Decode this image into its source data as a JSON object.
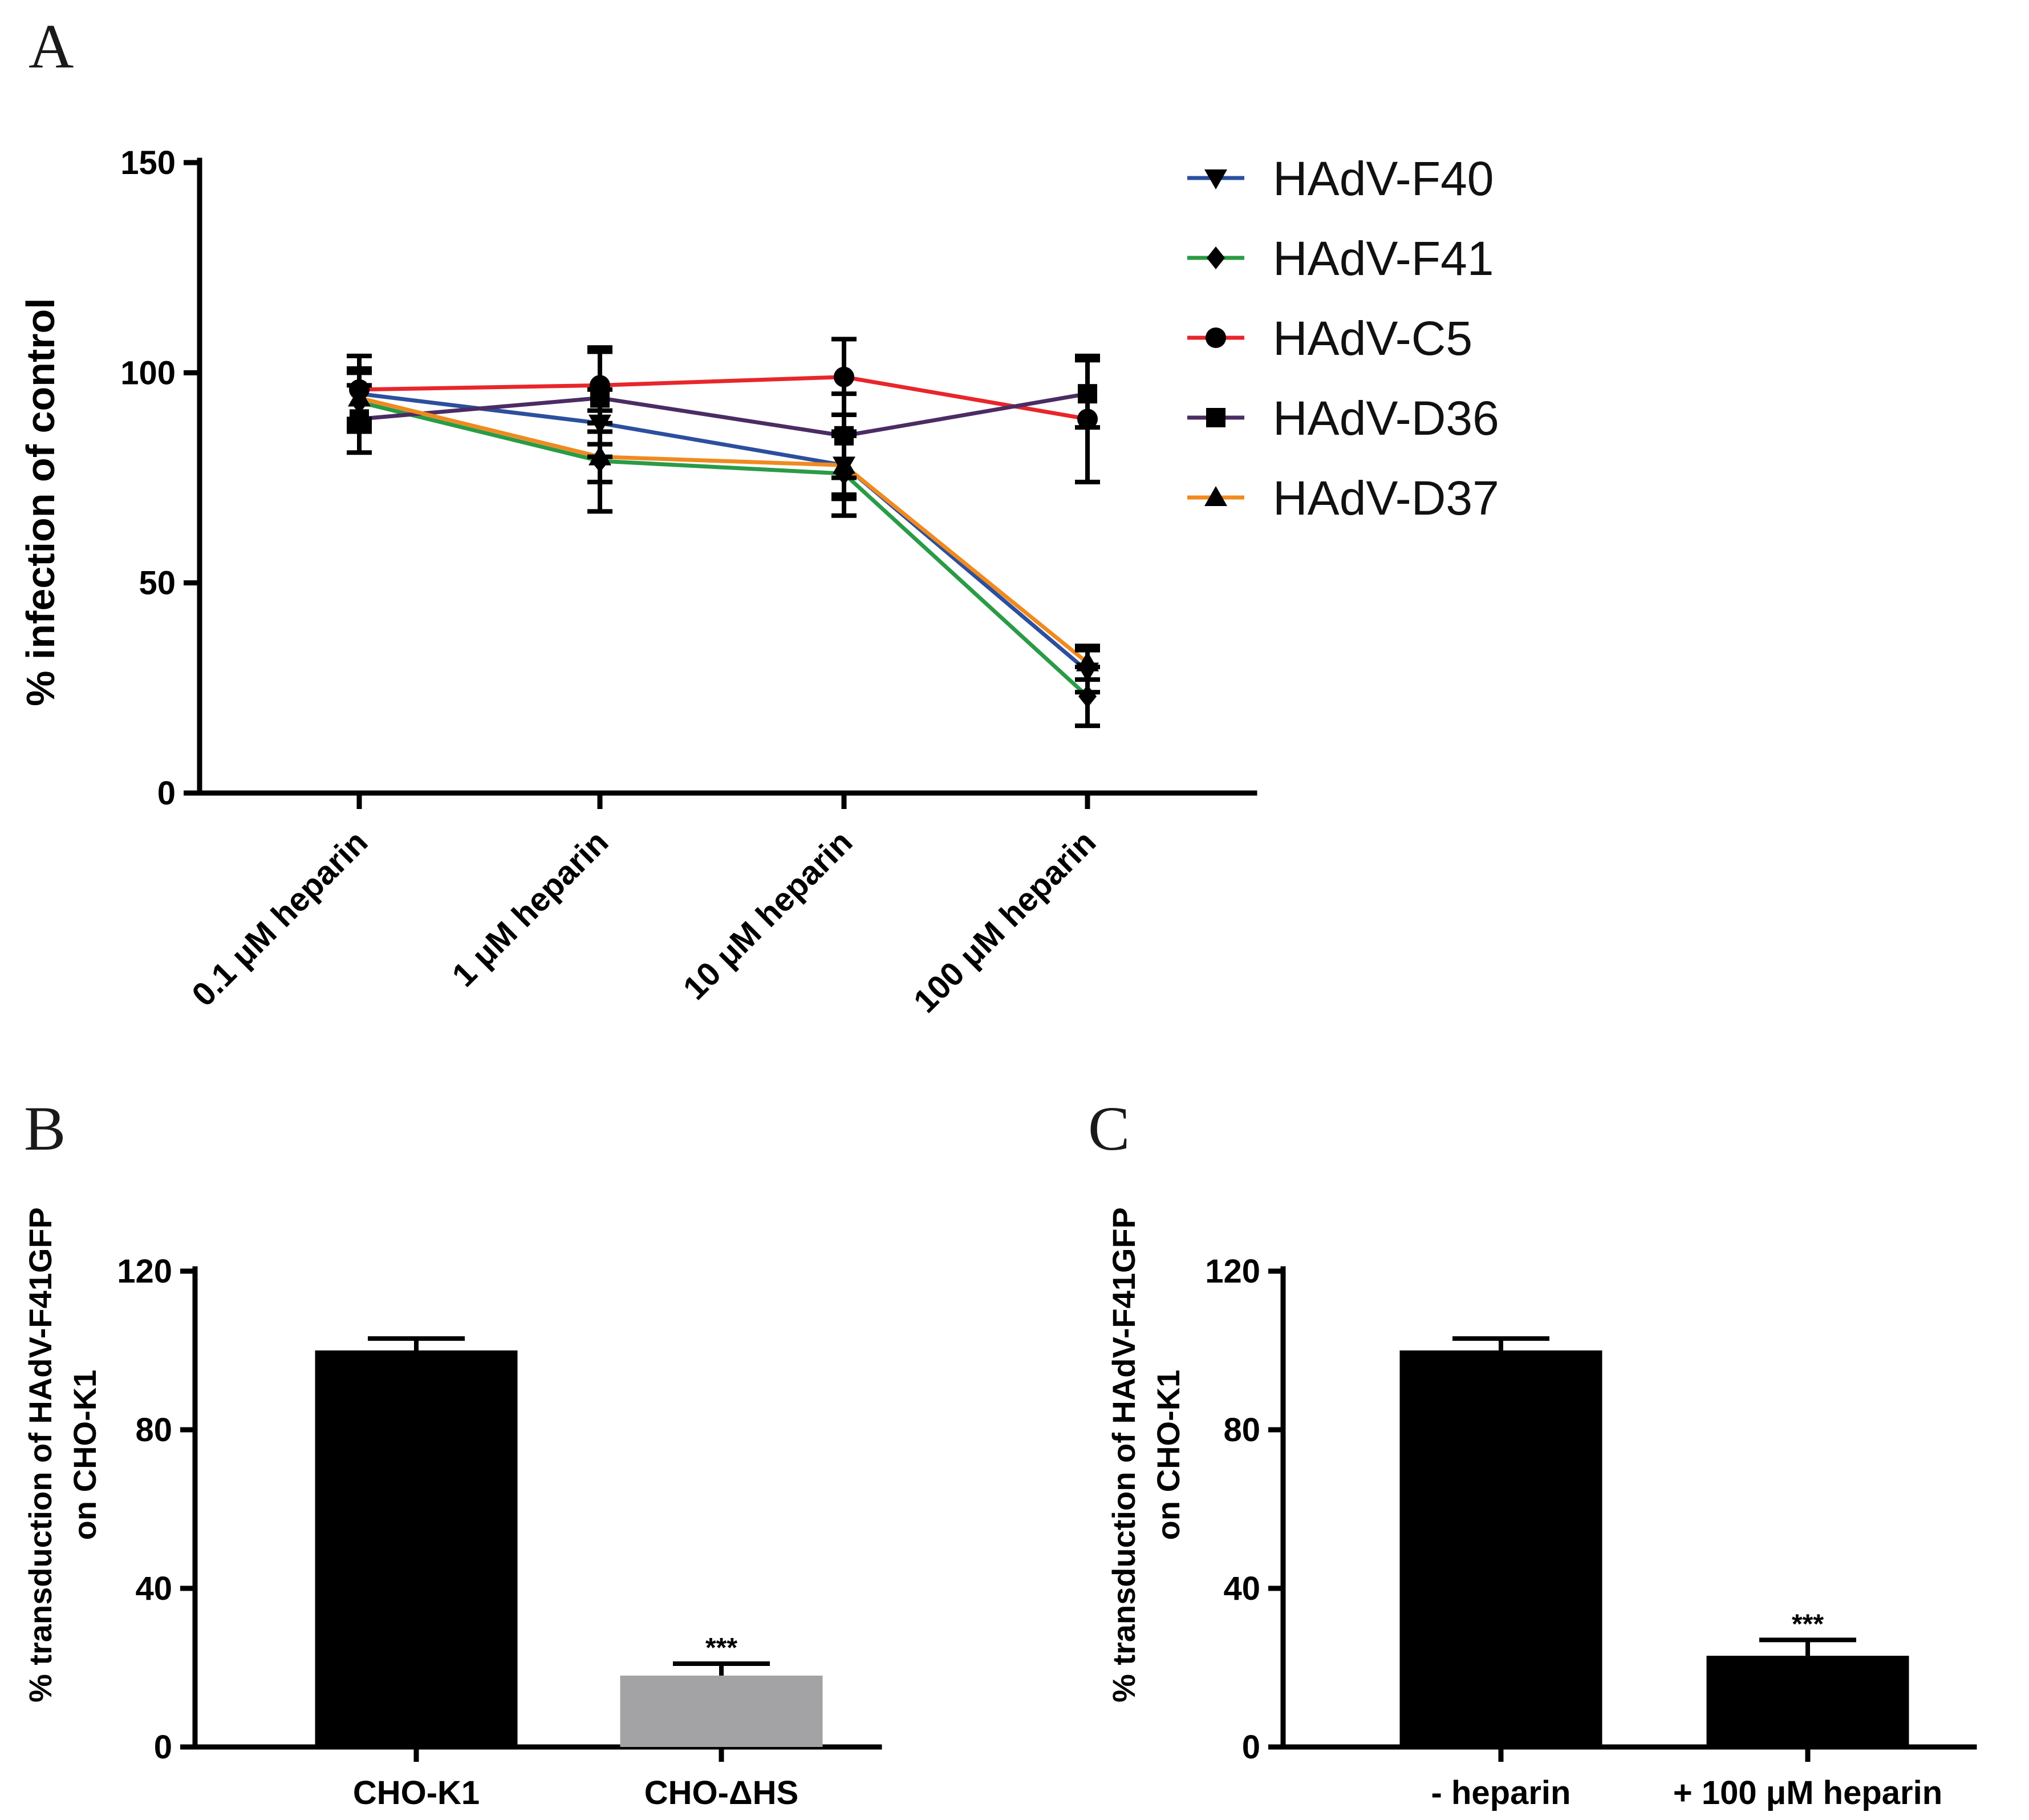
{
  "panels": {
    "a_label": "A",
    "b_label": "B",
    "c_label": "C"
  },
  "chart_data": [
    {
      "id": "A",
      "type": "line",
      "title": "",
      "ylabel": "% infection of control",
      "xlabel": "",
      "ylim": [
        0,
        150
      ],
      "yticks": [
        0,
        50,
        100,
        150
      ],
      "categories": [
        "0.1 μM heparin",
        "1 μM heparin",
        "10 μM heparin",
        "100 μM heparin"
      ],
      "series": [
        {
          "name": "HAdV-F40",
          "color": "#2c4f9e",
          "marker": "triangle-down",
          "values": [
            95,
            88,
            78,
            29
          ],
          "errors": [
            6,
            8,
            8,
            5
          ]
        },
        {
          "name": "HAdV-F41",
          "color": "#2a9b46",
          "marker": "diamond",
          "values": [
            93,
            79,
            76,
            23
          ],
          "errors": [
            7,
            12,
            10,
            7
          ]
        },
        {
          "name": "HAdV-C5",
          "color": "#e8262b",
          "marker": "circle",
          "values": [
            96,
            97,
            99,
            89
          ],
          "errors": [
            8,
            9,
            9,
            15
          ]
        },
        {
          "name": "HAdV-D36",
          "color": "#4b2c63",
          "marker": "square",
          "values": [
            89,
            94,
            85,
            95
          ],
          "errors": [
            8,
            11,
            10,
            8
          ]
        },
        {
          "name": "HAdV-D37",
          "color": "#f08a1f",
          "marker": "triangle-up",
          "values": [
            94,
            80,
            78,
            31
          ],
          "errors": [
            7,
            6,
            7,
            4
          ]
        }
      ]
    },
    {
      "id": "B",
      "type": "bar",
      "title": "",
      "ylabel_line1": "% transduction of HAdV-F41GFP",
      "ylabel_line2": "on CHO-K1",
      "ylim": [
        0,
        120
      ],
      "yticks": [
        0,
        40,
        80,
        120
      ],
      "categories": [
        "CHO-K1",
        "CHO-ΔHS"
      ],
      "values": [
        100,
        18
      ],
      "errors": [
        3,
        3
      ],
      "colors": [
        "#000000",
        "#a3a3a6"
      ],
      "annotations": [
        "",
        "***"
      ]
    },
    {
      "id": "C",
      "type": "bar",
      "title": "",
      "ylabel_line1": "% transduction of HAdV-F41GFP",
      "ylabel_line2": "on CHO-K1",
      "ylim": [
        0,
        120
      ],
      "yticks": [
        0,
        40,
        80,
        120
      ],
      "categories": [
        "- heparin",
        "+ 100 μM heparin"
      ],
      "values": [
        100,
        23
      ],
      "errors": [
        3,
        4
      ],
      "colors": [
        "#000000",
        "#000000"
      ],
      "annotations": [
        "",
        "***"
      ]
    }
  ]
}
